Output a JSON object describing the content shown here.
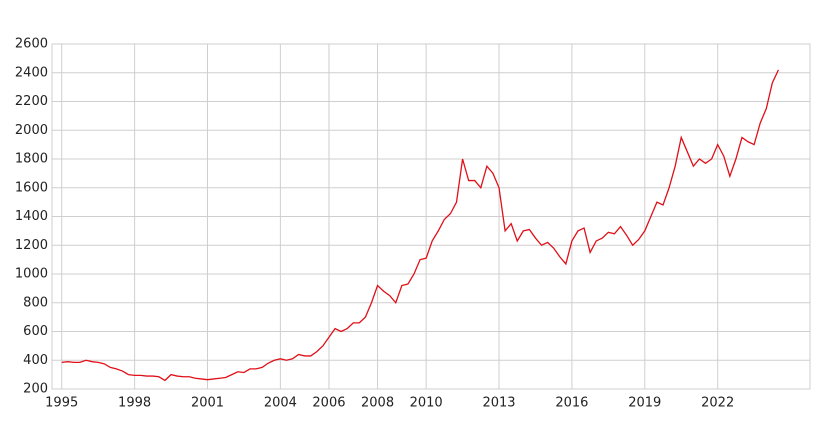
{
  "chart_data": {
    "type": "line",
    "x": [
      1995,
      1995.25,
      1995.5,
      1995.75,
      1996,
      1996.25,
      1996.5,
      1996.75,
      1997,
      1997.25,
      1997.5,
      1997.75,
      1998,
      1998.25,
      1998.5,
      1998.75,
      1999,
      1999.25,
      1999.5,
      1999.75,
      2000,
      2000.25,
      2000.5,
      2000.75,
      2001,
      2001.25,
      2001.5,
      2001.75,
      2002,
      2002.25,
      2002.5,
      2002.75,
      2003,
      2003.25,
      2003.5,
      2003.75,
      2004,
      2004.25,
      2004.5,
      2004.75,
      2005,
      2005.25,
      2005.5,
      2005.75,
      2006,
      2006.25,
      2006.5,
      2006.75,
      2007,
      2007.25,
      2007.5,
      2007.75,
      2008,
      2008.25,
      2008.5,
      2008.75,
      2009,
      2009.25,
      2009.5,
      2009.75,
      2010,
      2010.25,
      2010.5,
      2010.75,
      2011,
      2011.25,
      2011.5,
      2011.75,
      2012,
      2012.25,
      2012.5,
      2012.75,
      2013,
      2013.25,
      2013.5,
      2013.75,
      2014,
      2014.25,
      2014.5,
      2014.75,
      2015,
      2015.25,
      2015.5,
      2015.75,
      2016,
      2016.25,
      2016.5,
      2016.75,
      2017,
      2017.25,
      2017.5,
      2017.75,
      2018,
      2018.25,
      2018.5,
      2018.75,
      2019,
      2019.25,
      2019.5,
      2019.75,
      2020,
      2020.25,
      2020.5,
      2020.75,
      2021,
      2021.25,
      2021.5,
      2021.75,
      2022,
      2022.25,
      2022.5,
      2022.75,
      2023,
      2023.25,
      2023.5,
      2023.75,
      2024,
      2024.25,
      2024.5
    ],
    "series": [
      {
        "color": "#e01018",
        "values": [
          385,
          390,
          385,
          385,
          400,
          390,
          385,
          375,
          350,
          340,
          325,
          300,
          295,
          295,
          290,
          290,
          285,
          260,
          300,
          290,
          285,
          285,
          275,
          270,
          265,
          270,
          275,
          280,
          300,
          320,
          315,
          340,
          340,
          350,
          380,
          400,
          410,
          400,
          410,
          440,
          430,
          430,
          460,
          500,
          560,
          620,
          600,
          620,
          660,
          660,
          700,
          800,
          920,
          880,
          850,
          800,
          920,
          930,
          1000,
          1100,
          1110,
          1230,
          1300,
          1380,
          1420,
          1500,
          1800,
          1650,
          1650,
          1600,
          1750,
          1700,
          1600,
          1300,
          1350,
          1230,
          1300,
          1310,
          1250,
          1200,
          1220,
          1180,
          1120,
          1070,
          1230,
          1300,
          1320,
          1150,
          1230,
          1250,
          1290,
          1280,
          1330,
          1270,
          1200,
          1240,
          1300,
          1400,
          1500,
          1480,
          1600,
          1750,
          1950,
          1850,
          1750,
          1800,
          1770,
          1800,
          1900,
          1820,
          1680,
          1800,
          1950,
          1920,
          1900,
          2050,
          2150,
          2330,
          2420
        ]
      }
    ],
    "xlim": [
      1994.6,
      2025.8
    ],
    "xticks": [
      1995,
      1998,
      2001,
      2004,
      2006,
      2008,
      2010,
      2013,
      2016,
      2019,
      2022
    ],
    "ylim": [
      200,
      2600
    ],
    "yticks": [
      200,
      400,
      600,
      800,
      1000,
      1200,
      1400,
      1600,
      1800,
      2000,
      2200,
      2400,
      2600
    ],
    "grid": true
  }
}
